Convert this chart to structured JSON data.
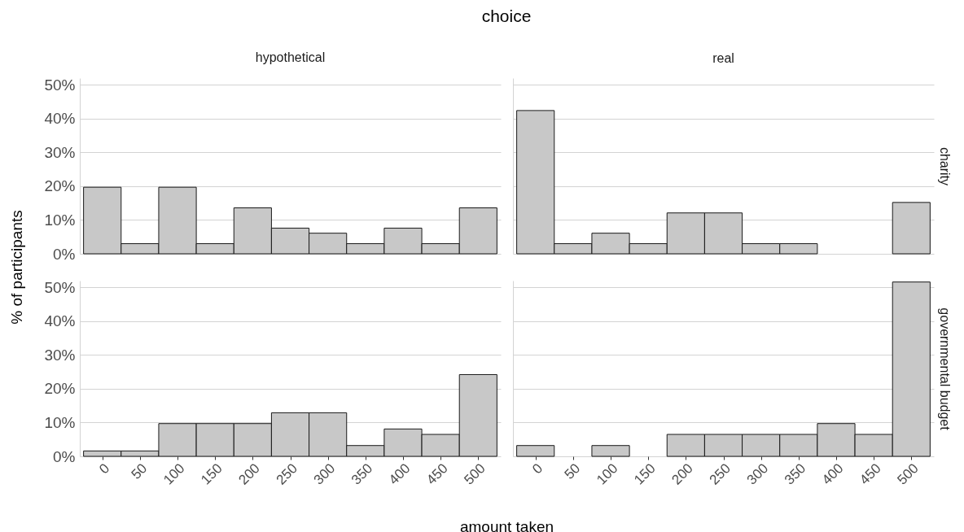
{
  "chart_data": [
    {
      "type": "histogram",
      "title": "hypothetical",
      "annotations": [
        "choice"
      ],
      "ylabel": "% of participants",
      "bins": [
        -25,
        25,
        75,
        125,
        175,
        225,
        275,
        325,
        375,
        425,
        475,
        525
      ],
      "values": [
        19.7,
        3.0,
        19.7,
        3.0,
        13.6,
        7.6,
        6.1,
        3.0,
        7.6,
        3.0,
        13.6
      ],
      "color": "#c8c8c8",
      "xlim": [
        -30,
        530
      ],
      "ylim": [
        0,
        52
      ],
      "xticks": [
        0,
        50,
        100,
        150,
        200,
        250,
        300,
        350,
        400,
        450,
        500
      ],
      "yticks": [
        {
          "value": 0,
          "label": "0%"
        },
        {
          "value": 10,
          "label": "10%"
        },
        {
          "value": 20,
          "label": "20%"
        },
        {
          "value": 30,
          "label": "30%"
        },
        {
          "value": 40,
          "label": "40%"
        },
        {
          "value": 50,
          "label": "50%"
        }
      ],
      "grid": "y",
      "tick_labels": "y"
    },
    {
      "type": "histogram",
      "title": "real",
      "y2label": "charity",
      "bins": [
        -25,
        25,
        75,
        125,
        175,
        225,
        275,
        325,
        375,
        425,
        475,
        525
      ],
      "values": [
        42.4,
        3.0,
        6.1,
        3.0,
        12.1,
        12.1,
        3.0,
        3.0,
        0,
        0,
        15.2
      ],
      "color": "#c8c8c8",
      "xlim": [
        -30,
        530
      ],
      "ylim": [
        0,
        52
      ],
      "xticks": [
        0,
        50,
        100,
        150,
        200,
        250,
        300,
        350,
        400,
        450,
        500
      ],
      "yticks": [
        0,
        10,
        20,
        30,
        40,
        50
      ],
      "grid": "y",
      "tick_labels": false
    },
    {
      "type": "histogram",
      "xlabel": "amount taken",
      "bins": [
        -25,
        25,
        75,
        125,
        175,
        225,
        275,
        325,
        375,
        425,
        475,
        525
      ],
      "values": [
        1.6,
        1.6,
        9.7,
        9.7,
        9.7,
        12.9,
        12.9,
        3.2,
        8.1,
        6.5,
        24.2
      ],
      "color": "#c8c8c8",
      "xlim": [
        -30,
        530
      ],
      "ylim": [
        0,
        52
      ],
      "xticks": [
        0,
        50,
        100,
        150,
        200,
        250,
        300,
        350,
        400,
        450,
        500
      ],
      "yticks": [
        {
          "value": 0,
          "label": "0%"
        },
        {
          "value": 10,
          "label": "10%"
        },
        {
          "value": 20,
          "label": "20%"
        },
        {
          "value": 30,
          "label": "30%"
        },
        {
          "value": 40,
          "label": "40%"
        },
        {
          "value": 50,
          "label": "50%"
        }
      ],
      "grid": "y"
    },
    {
      "type": "histogram",
      "y2label": "governmental budget",
      "bins": [
        -25,
        25,
        75,
        125,
        175,
        225,
        275,
        325,
        375,
        425,
        475,
        525
      ],
      "values": [
        3.2,
        0,
        3.2,
        0,
        6.5,
        6.5,
        6.5,
        6.5,
        9.7,
        6.5,
        51.6
      ],
      "color": "#c8c8c8",
      "xlim": [
        -30,
        530
      ],
      "ylim": [
        0,
        52
      ],
      "xticks": [
        0,
        50,
        100,
        150,
        200,
        250,
        300,
        350,
        400,
        450,
        500
      ],
      "yticks": [
        0,
        10,
        20,
        30,
        40,
        50
      ],
      "grid": "y",
      "tick_labels": "x"
    }
  ]
}
